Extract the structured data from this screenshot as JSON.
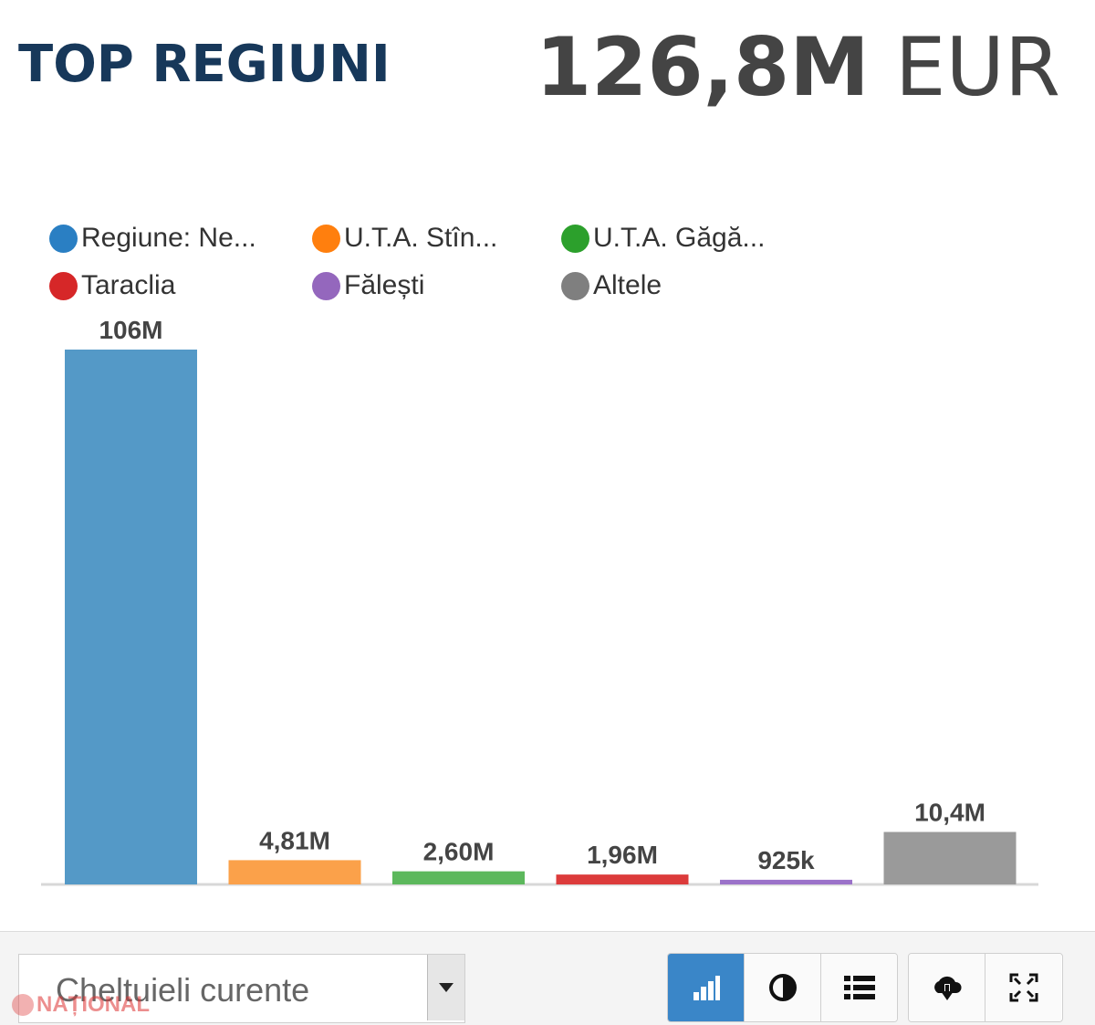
{
  "header": {
    "title": "TOP REGIUNI",
    "total_value": "126,8M",
    "total_unit": "EUR"
  },
  "chart_data": {
    "type": "bar",
    "categories": [
      "Regiune: Ne...",
      "U.T.A. Stîn...",
      "U.T.A. Găgă...",
      "Taraclia",
      "Fălești",
      "Altele"
    ],
    "values": [
      106000000,
      4810000,
      2600000,
      1960000,
      925000,
      10400000
    ],
    "value_labels": [
      "106M",
      "4,81M",
      "2,60M",
      "1,96M",
      "925k",
      "10,4M"
    ],
    "colors": [
      "#5499c7",
      "#fba14a",
      "#5cb85c",
      "#dc3b3b",
      "#9b72c9",
      "#9a9a9a"
    ],
    "legend": [
      {
        "label": "Regiune: Ne...",
        "color": "#2a7fc3"
      },
      {
        "label": "U.T.A. Stîn...",
        "color": "#ff7f0e"
      },
      {
        "label": "U.T.A. Găgă...",
        "color": "#2ca02c"
      },
      {
        "label": "Taraclia",
        "color": "#d62728"
      },
      {
        "label": "Fălești",
        "color": "#9467bd"
      },
      {
        "label": "Altele",
        "color": "#7f7f7f"
      }
    ],
    "legend_position": "top-left",
    "grid": false
  },
  "controls": {
    "select_value": "Cheltuieli curente",
    "view_buttons": [
      "bar-chart-icon",
      "contrast-icon",
      "list-icon"
    ],
    "action_buttons": [
      "cloud-download-icon",
      "fullscreen-icon"
    ]
  },
  "watermark": {
    "text": "NAȚIONAL"
  }
}
